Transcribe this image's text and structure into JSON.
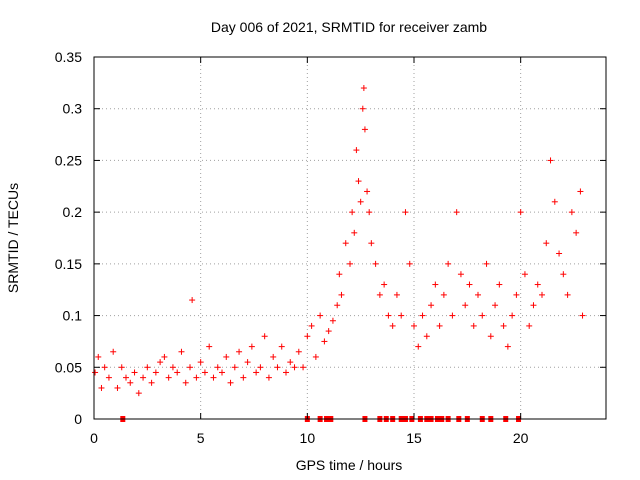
{
  "chart_data": {
    "type": "scatter",
    "title": "Day 006 of 2021, SRMTID for receiver zamb",
    "xlabel": "GPS time / hours",
    "ylabel": "SRMTID / TECUs",
    "xlim": [
      0,
      24
    ],
    "ylim": [
      0,
      0.35
    ],
    "x_ticks": [
      0,
      5,
      10,
      15,
      20
    ],
    "x_tick_labels": [
      "0",
      "5",
      "10",
      "15",
      "20"
    ],
    "y_ticks": [
      0,
      0.05,
      0.1,
      0.15,
      0.2,
      0.25,
      0.3,
      0.35
    ],
    "y_tick_labels": [
      "0",
      "0.05",
      "0.1",
      "0.15",
      "0.2",
      "0.25",
      "0.3",
      "0.35"
    ],
    "grid": true,
    "marker": "+",
    "series_color": "#ff0000",
    "series": [
      {
        "name": "SRMTID",
        "points": [
          [
            0.05,
            0.045
          ],
          [
            0.2,
            0.06
          ],
          [
            0.35,
            0.03
          ],
          [
            0.5,
            0.05
          ],
          [
            0.7,
            0.04
          ],
          [
            0.9,
            0.065
          ],
          [
            1.1,
            0.03
          ],
          [
            1.3,
            0.05
          ],
          [
            1.5,
            0.04
          ],
          [
            1.7,
            0.035
          ],
          [
            1.9,
            0.045
          ],
          [
            2.1,
            0.025
          ],
          [
            2.3,
            0.04
          ],
          [
            2.5,
            0.05
          ],
          [
            2.7,
            0.035
          ],
          [
            2.9,
            0.045
          ],
          [
            3.1,
            0.055
          ],
          [
            3.3,
            0.06
          ],
          [
            3.5,
            0.04
          ],
          [
            3.7,
            0.05
          ],
          [
            3.9,
            0.045
          ],
          [
            4.1,
            0.065
          ],
          [
            4.3,
            0.035
          ],
          [
            4.5,
            0.05
          ],
          [
            4.6,
            0.115
          ],
          [
            4.8,
            0.04
          ],
          [
            5.0,
            0.055
          ],
          [
            5.2,
            0.045
          ],
          [
            5.4,
            0.07
          ],
          [
            5.6,
            0.04
          ],
          [
            5.8,
            0.05
          ],
          [
            6.0,
            0.045
          ],
          [
            6.2,
            0.06
          ],
          [
            6.4,
            0.035
          ],
          [
            6.6,
            0.05
          ],
          [
            6.8,
            0.065
          ],
          [
            7.0,
            0.04
          ],
          [
            7.2,
            0.055
          ],
          [
            7.4,
            0.07
          ],
          [
            7.6,
            0.045
          ],
          [
            7.8,
            0.05
          ],
          [
            8.0,
            0.08
          ],
          [
            8.2,
            0.04
          ],
          [
            8.4,
            0.06
          ],
          [
            8.6,
            0.05
          ],
          [
            8.8,
            0.07
          ],
          [
            9.0,
            0.045
          ],
          [
            9.2,
            0.055
          ],
          [
            9.4,
            0.05
          ],
          [
            9.6,
            0.065
          ],
          [
            9.8,
            0.05
          ],
          [
            10.0,
            0.08
          ],
          [
            10.2,
            0.09
          ],
          [
            10.4,
            0.06
          ],
          [
            10.6,
            0.1
          ],
          [
            10.8,
            0.075
          ],
          [
            11.0,
            0.085
          ],
          [
            11.2,
            0.095
          ],
          [
            11.4,
            0.11
          ],
          [
            11.5,
            0.14
          ],
          [
            11.6,
            0.12
          ],
          [
            11.8,
            0.17
          ],
          [
            12.0,
            0.15
          ],
          [
            12.1,
            0.2
          ],
          [
            12.2,
            0.18
          ],
          [
            12.3,
            0.26
          ],
          [
            12.4,
            0.23
          ],
          [
            12.5,
            0.21
          ],
          [
            12.6,
            0.3
          ],
          [
            12.65,
            0.32
          ],
          [
            12.7,
            0.28
          ],
          [
            12.8,
            0.22
          ],
          [
            12.9,
            0.2
          ],
          [
            13.0,
            0.17
          ],
          [
            13.2,
            0.15
          ],
          [
            13.4,
            0.12
          ],
          [
            13.6,
            0.13
          ],
          [
            13.8,
            0.1
          ],
          [
            14.0,
            0.09
          ],
          [
            14.2,
            0.12
          ],
          [
            14.4,
            0.1
          ],
          [
            14.6,
            0.2
          ],
          [
            14.8,
            0.15
          ],
          [
            15.0,
            0.09
          ],
          [
            15.2,
            0.07
          ],
          [
            15.4,
            0.1
          ],
          [
            15.6,
            0.08
          ],
          [
            15.8,
            0.11
          ],
          [
            16.0,
            0.13
          ],
          [
            16.2,
            0.09
          ],
          [
            16.4,
            0.12
          ],
          [
            16.6,
            0.15
          ],
          [
            16.8,
            0.1
          ],
          [
            17.0,
            0.2
          ],
          [
            17.2,
            0.14
          ],
          [
            17.4,
            0.11
          ],
          [
            17.6,
            0.13
          ],
          [
            17.8,
            0.09
          ],
          [
            18.0,
            0.12
          ],
          [
            18.2,
            0.1
          ],
          [
            18.4,
            0.15
          ],
          [
            18.6,
            0.08
          ],
          [
            18.8,
            0.11
          ],
          [
            19.0,
            0.13
          ],
          [
            19.2,
            0.09
          ],
          [
            19.4,
            0.07
          ],
          [
            19.6,
            0.1
          ],
          [
            19.8,
            0.12
          ],
          [
            20.0,
            0.2
          ],
          [
            20.2,
            0.14
          ],
          [
            20.4,
            0.09
          ],
          [
            20.6,
            0.11
          ],
          [
            20.8,
            0.13
          ],
          [
            21.0,
            0.12
          ],
          [
            21.2,
            0.17
          ],
          [
            21.4,
            0.25
          ],
          [
            21.6,
            0.21
          ],
          [
            21.8,
            0.16
          ],
          [
            22.0,
            0.14
          ],
          [
            22.2,
            0.12
          ],
          [
            22.4,
            0.2
          ],
          [
            22.6,
            0.18
          ],
          [
            22.8,
            0.22
          ],
          [
            22.9,
            0.1
          ]
        ],
        "zero_points": [
          1.35,
          10.0,
          10.6,
          10.9,
          11.1,
          12.7,
          13.4,
          13.7,
          14.0,
          14.4,
          14.6,
          14.9,
          15.3,
          15.6,
          15.8,
          16.1,
          16.3,
          16.6,
          17.1,
          17.5,
          18.2,
          18.6,
          19.3,
          19.9
        ]
      }
    ]
  }
}
